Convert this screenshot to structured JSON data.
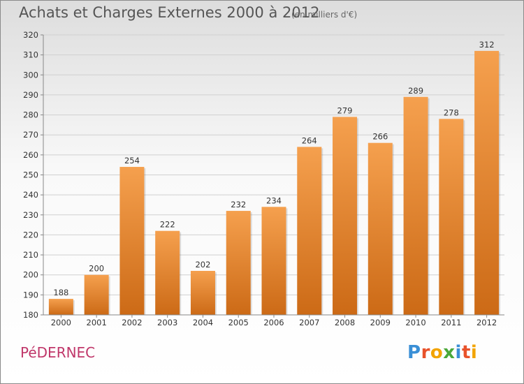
{
  "header": {
    "title": "Achats et Charges Externes 2000 à 2012",
    "subtitle": "(en milliers d'€)"
  },
  "footer": {
    "commune": "PéDERNEC",
    "brand": "Proxiti"
  },
  "colors": {
    "bar_light": "#f5a04e",
    "bar_dark": "#cc6a16",
    "grid": "#d0d0d0",
    "commune_text": "#c0376a"
  },
  "chart_data": {
    "type": "bar",
    "title": "Achats et Charges Externes 2000 à 2012",
    "subtitle": "(en milliers d'€)",
    "categories": [
      "2000",
      "2001",
      "2002",
      "2003",
      "2004",
      "2005",
      "2006",
      "2007",
      "2008",
      "2009",
      "2010",
      "2011",
      "2012"
    ],
    "values": [
      188,
      200,
      254,
      222,
      202,
      232,
      234,
      264,
      279,
      266,
      289,
      278,
      312
    ],
    "ylim": [
      180,
      320
    ],
    "yticks": [
      180,
      190,
      200,
      210,
      220,
      230,
      240,
      250,
      260,
      270,
      280,
      290,
      300,
      310,
      320
    ],
    "grid": true,
    "legend": "none"
  }
}
